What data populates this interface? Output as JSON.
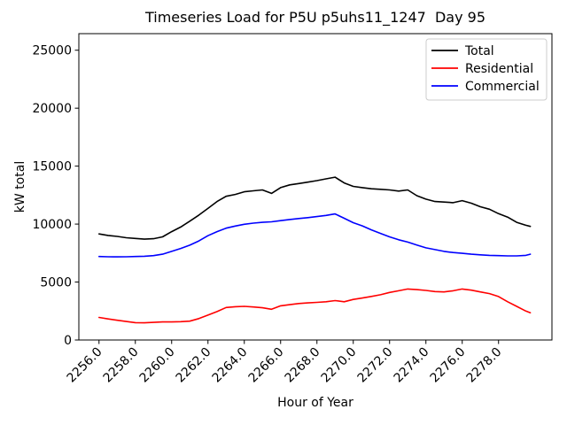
{
  "chart_data": {
    "type": "line",
    "title": "Timeseries Load for P5U p5uhs11_1247  Day 95",
    "xlabel": "Hour of Year",
    "ylabel": "kW total",
    "grid": false,
    "legend_position": "upper right",
    "legend": [
      "Total",
      "Residential",
      "Commercial"
    ],
    "xlim": [
      2254.89,
      2280.94
    ],
    "ylim": [
      0,
      26430
    ],
    "x_tick_values": [
      2256,
      2258,
      2260,
      2262,
      2264,
      2266,
      2268,
      2270,
      2272,
      2274,
      2276,
      2278
    ],
    "x_tick_labels": [
      "2256.0",
      "2258.0",
      "2260.0",
      "2262.0",
      "2264.0",
      "2266.0",
      "2268.0",
      "2270.0",
      "2272.0",
      "2274.0",
      "2276.0",
      "2278.0"
    ],
    "y_tick_values": [
      0,
      5000,
      10000,
      15000,
      20000,
      25000
    ],
    "y_tick_labels": [
      "0",
      "5000",
      "10000",
      "15000",
      "20000",
      "25000"
    ],
    "x": [
      2256.0,
      2256.5,
      2257.0,
      2257.5,
      2258.0,
      2258.5,
      2259.0,
      2259.5,
      2260.0,
      2260.5,
      2261.0,
      2261.5,
      2262.0,
      2262.5,
      2263.0,
      2263.5,
      2264.0,
      2264.5,
      2265.0,
      2265.5,
      2266.0,
      2266.5,
      2267.0,
      2267.5,
      2268.0,
      2268.5,
      2269.0,
      2269.5,
      2270.0,
      2270.5,
      2271.0,
      2271.5,
      2272.0,
      2272.5,
      2273.0,
      2273.5,
      2274.0,
      2274.5,
      2275.0,
      2275.5,
      2276.0,
      2276.5,
      2277.0,
      2277.5,
      2278.0,
      2278.5,
      2279.0,
      2279.5,
      2279.75
    ],
    "series": [
      {
        "name": "Total",
        "color": "#000000",
        "values": [
          9150,
          9020,
          8940,
          8820,
          8760,
          8700,
          8740,
          8900,
          9350,
          9750,
          10250,
          10780,
          11350,
          11950,
          12400,
          12560,
          12790,
          12870,
          12950,
          12650,
          13150,
          13380,
          13500,
          13620,
          13750,
          13900,
          14050,
          13550,
          13250,
          13150,
          13050,
          13000,
          12950,
          12850,
          12950,
          12450,
          12150,
          11950,
          11900,
          11850,
          12020,
          11800,
          11500,
          11280,
          10900,
          10600,
          10150,
          9900,
          9800
        ]
      },
      {
        "name": "Residential",
        "color": "#ff0000",
        "values": [
          1950,
          1820,
          1700,
          1600,
          1500,
          1480,
          1520,
          1560,
          1560,
          1580,
          1630,
          1850,
          2150,
          2450,
          2800,
          2870,
          2900,
          2850,
          2780,
          2650,
          2950,
          3050,
          3150,
          3200,
          3250,
          3300,
          3400,
          3300,
          3500,
          3620,
          3760,
          3900,
          4100,
          4250,
          4400,
          4350,
          4280,
          4180,
          4150,
          4250,
          4400,
          4300,
          4150,
          4000,
          3750,
          3300,
          2900,
          2500,
          2350
        ]
      },
      {
        "name": "Commercial",
        "color": "#0000ff",
        "values": [
          7200,
          7180,
          7170,
          7180,
          7200,
          7230,
          7280,
          7400,
          7650,
          7900,
          8180,
          8550,
          9000,
          9350,
          9650,
          9830,
          9980,
          10080,
          10150,
          10200,
          10300,
          10400,
          10480,
          10560,
          10650,
          10750,
          10880,
          10500,
          10120,
          9850,
          9500,
          9200,
          8900,
          8650,
          8450,
          8200,
          7950,
          7800,
          7650,
          7550,
          7480,
          7400,
          7350,
          7300,
          7280,
          7260,
          7260,
          7300,
          7400
        ]
      }
    ]
  }
}
